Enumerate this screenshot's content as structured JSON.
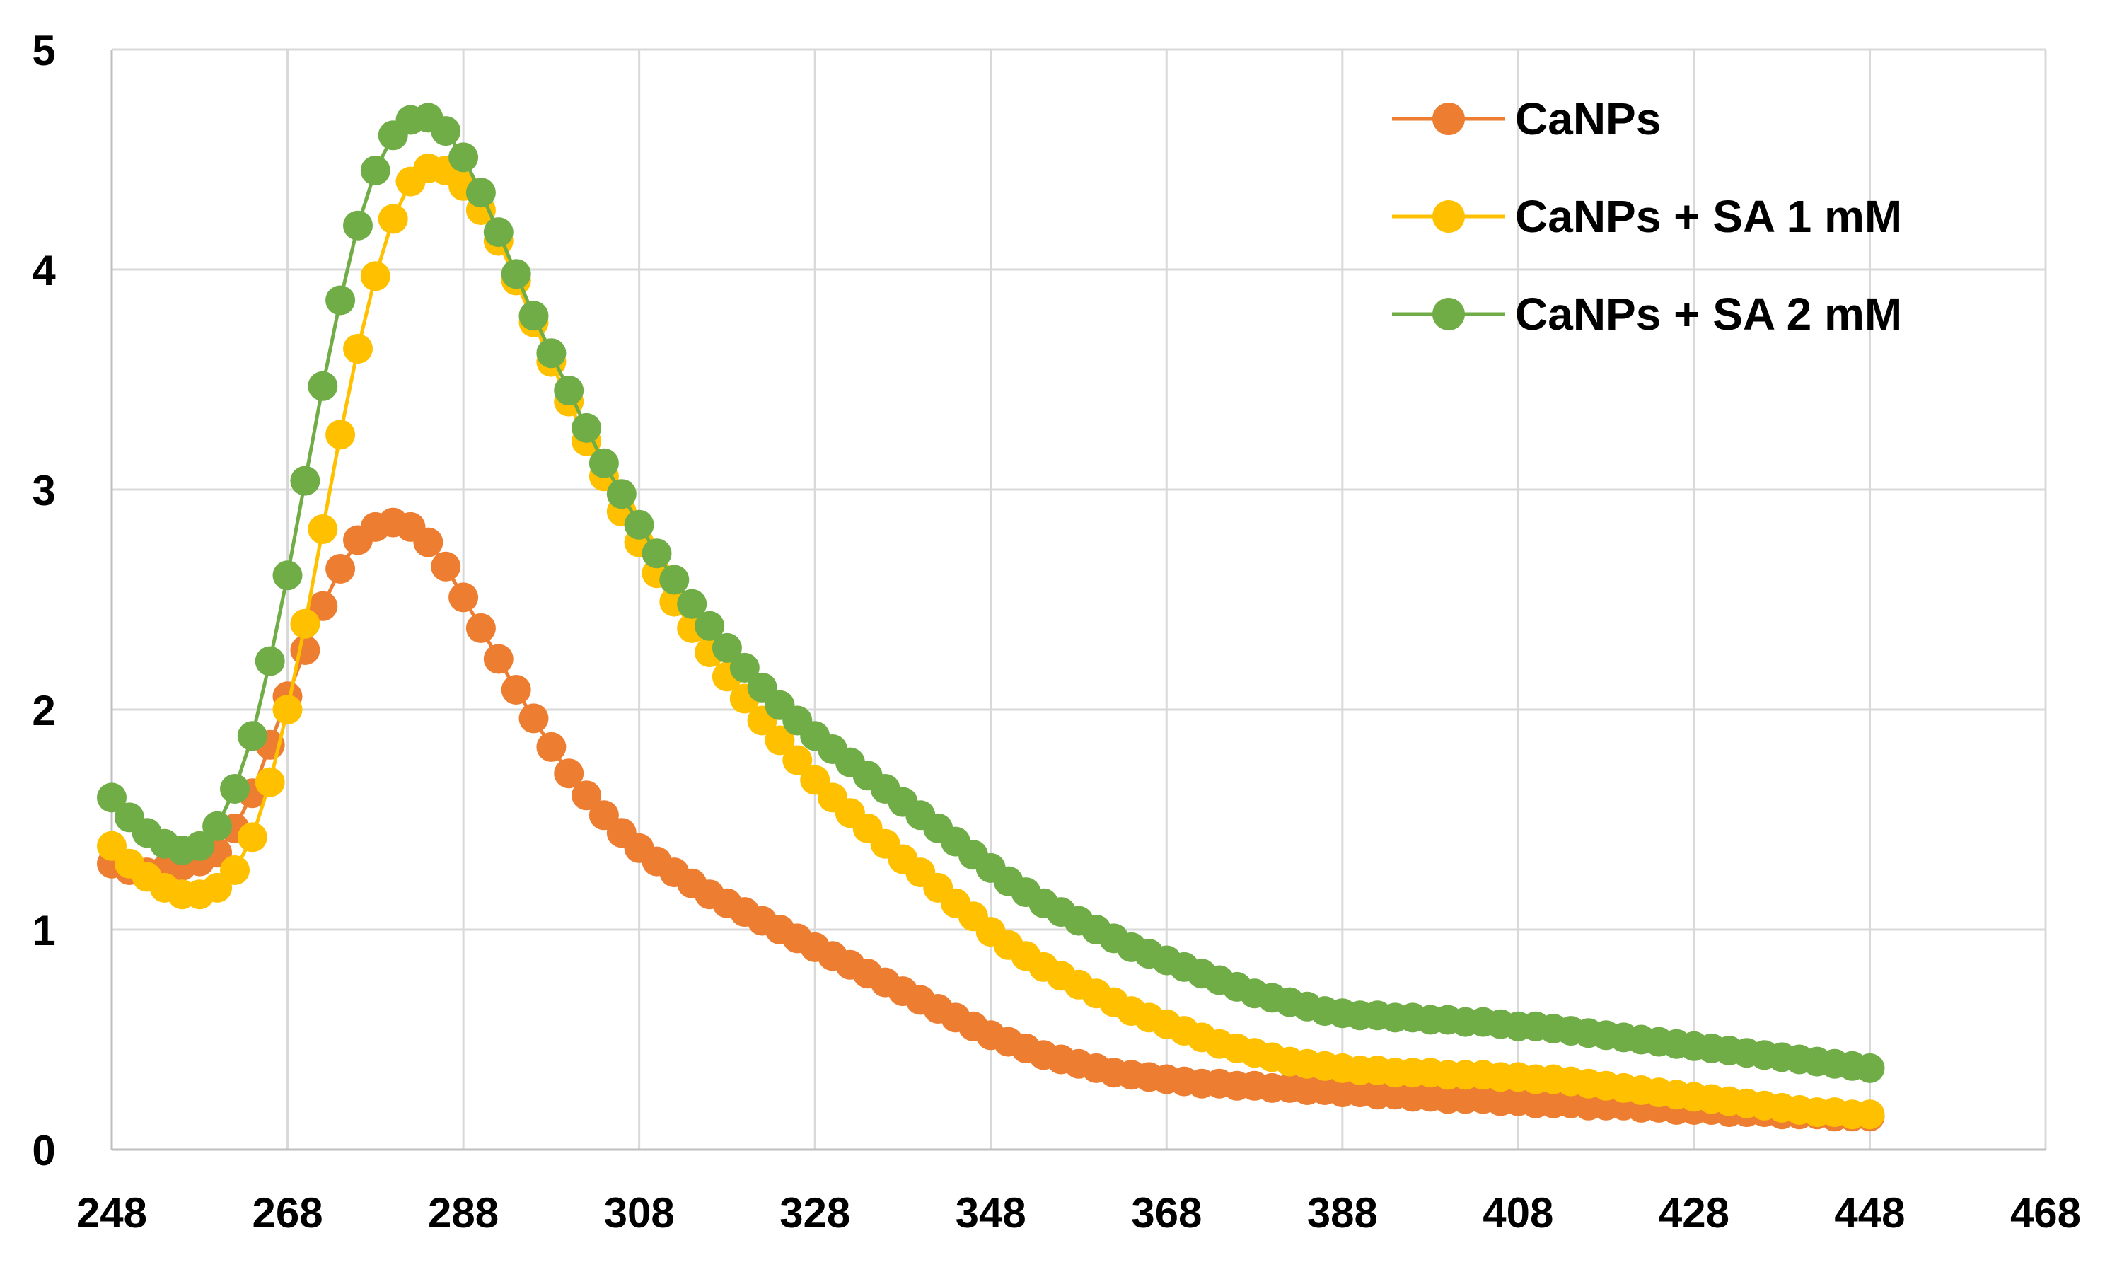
{
  "chart_data": {
    "type": "line",
    "title": "",
    "xlabel": "",
    "ylabel": "",
    "xlim": [
      248,
      468
    ],
    "ylim": [
      0,
      5
    ],
    "x_ticks": [
      "248",
      "268",
      "288",
      "308",
      "328",
      "348",
      "368",
      "388",
      "408",
      "428",
      "448",
      "468"
    ],
    "y_ticks": [
      "0",
      "1",
      "2",
      "3",
      "4",
      "5"
    ],
    "grid": true,
    "legend_position": "top-right",
    "x": [
      248,
      250,
      252,
      254,
      256,
      258,
      260,
      262,
      264,
      266,
      268,
      270,
      272,
      274,
      276,
      278,
      280,
      282,
      284,
      286,
      288,
      290,
      292,
      294,
      296,
      298,
      300,
      302,
      304,
      306,
      308,
      310,
      312,
      314,
      316,
      318,
      320,
      322,
      324,
      326,
      328,
      330,
      332,
      334,
      336,
      338,
      340,
      342,
      344,
      346,
      348,
      350,
      352,
      354,
      356,
      358,
      360,
      362,
      364,
      366,
      368,
      370,
      372,
      374,
      376,
      378,
      380,
      382,
      384,
      386,
      388,
      390,
      392,
      394,
      396,
      398,
      400,
      402,
      404,
      406,
      408,
      410,
      412,
      414,
      416,
      418,
      420,
      422,
      424,
      426,
      428,
      430,
      432,
      434,
      436,
      438,
      440,
      442,
      444,
      446,
      448
    ],
    "series": [
      {
        "name": "CaNPs",
        "color": "#ED7D31",
        "values": [
          1.3,
          1.27,
          1.26,
          1.27,
          1.29,
          1.31,
          1.35,
          1.46,
          1.62,
          1.84,
          2.06,
          2.27,
          2.47,
          2.64,
          2.77,
          2.83,
          2.85,
          2.83,
          2.76,
          2.65,
          2.51,
          2.37,
          2.23,
          2.09,
          1.96,
          1.83,
          1.71,
          1.61,
          1.52,
          1.44,
          1.37,
          1.31,
          1.26,
          1.21,
          1.16,
          1.12,
          1.08,
          1.04,
          1.0,
          0.96,
          0.92,
          0.88,
          0.84,
          0.8,
          0.76,
          0.72,
          0.68,
          0.64,
          0.6,
          0.56,
          0.52,
          0.49,
          0.46,
          0.43,
          0.41,
          0.39,
          0.37,
          0.35,
          0.34,
          0.33,
          0.32,
          0.31,
          0.3,
          0.3,
          0.29,
          0.29,
          0.28,
          0.28,
          0.27,
          0.27,
          0.26,
          0.26,
          0.25,
          0.25,
          0.24,
          0.24,
          0.23,
          0.23,
          0.23,
          0.22,
          0.22,
          0.21,
          0.21,
          0.21,
          0.2,
          0.2,
          0.2,
          0.19,
          0.19,
          0.18,
          0.18,
          0.18,
          0.17,
          0.17,
          0.17,
          0.16,
          0.16,
          0.16,
          0.15,
          0.15,
          0.15
        ]
      },
      {
        "name": "CaNPs + SA 1 mM",
        "color": "#FFC000",
        "values": [
          1.38,
          1.3,
          1.24,
          1.19,
          1.16,
          1.16,
          1.19,
          1.27,
          1.42,
          1.67,
          2.0,
          2.39,
          2.82,
          3.25,
          3.64,
          3.97,
          4.23,
          4.4,
          4.46,
          4.45,
          4.38,
          4.27,
          4.13,
          3.95,
          3.76,
          3.58,
          3.4,
          3.22,
          3.06,
          2.9,
          2.76,
          2.62,
          2.49,
          2.37,
          2.26,
          2.15,
          2.05,
          1.95,
          1.86,
          1.77,
          1.68,
          1.6,
          1.53,
          1.46,
          1.39,
          1.32,
          1.26,
          1.19,
          1.12,
          1.06,
          0.99,
          0.93,
          0.88,
          0.83,
          0.79,
          0.75,
          0.71,
          0.67,
          0.63,
          0.6,
          0.57,
          0.54,
          0.51,
          0.48,
          0.46,
          0.44,
          0.42,
          0.4,
          0.39,
          0.38,
          0.37,
          0.36,
          0.36,
          0.35,
          0.35,
          0.35,
          0.34,
          0.34,
          0.34,
          0.33,
          0.33,
          0.32,
          0.32,
          0.31,
          0.3,
          0.29,
          0.28,
          0.27,
          0.26,
          0.25,
          0.24,
          0.23,
          0.22,
          0.21,
          0.2,
          0.19,
          0.18,
          0.17,
          0.17,
          0.16,
          0.16
        ]
      },
      {
        "name": "CaNPs + SA 2 mM",
        "color": "#70AD47",
        "values": [
          1.6,
          1.51,
          1.44,
          1.39,
          1.36,
          1.38,
          1.47,
          1.64,
          1.88,
          2.22,
          2.61,
          3.04,
          3.47,
          3.86,
          4.2,
          4.45,
          4.61,
          4.68,
          4.69,
          4.63,
          4.51,
          4.35,
          4.17,
          3.98,
          3.79,
          3.62,
          3.45,
          3.28,
          3.12,
          2.98,
          2.84,
          2.71,
          2.59,
          2.48,
          2.38,
          2.28,
          2.19,
          2.1,
          2.02,
          1.95,
          1.88,
          1.82,
          1.76,
          1.7,
          1.64,
          1.58,
          1.52,
          1.46,
          1.4,
          1.34,
          1.28,
          1.22,
          1.17,
          1.12,
          1.08,
          1.04,
          1.0,
          0.96,
          0.92,
          0.89,
          0.86,
          0.83,
          0.8,
          0.77,
          0.74,
          0.71,
          0.69,
          0.67,
          0.65,
          0.63,
          0.62,
          0.61,
          0.61,
          0.6,
          0.6,
          0.59,
          0.59,
          0.58,
          0.58,
          0.57,
          0.56,
          0.56,
          0.55,
          0.54,
          0.53,
          0.52,
          0.51,
          0.5,
          0.49,
          0.48,
          0.47,
          0.46,
          0.45,
          0.44,
          0.43,
          0.42,
          0.41,
          0.4,
          0.39,
          0.38,
          0.37
        ]
      }
    ]
  },
  "style": {
    "grid_color": "#D9D9D9",
    "axis_color": "#BFBFBF",
    "label_color": "#000000"
  }
}
